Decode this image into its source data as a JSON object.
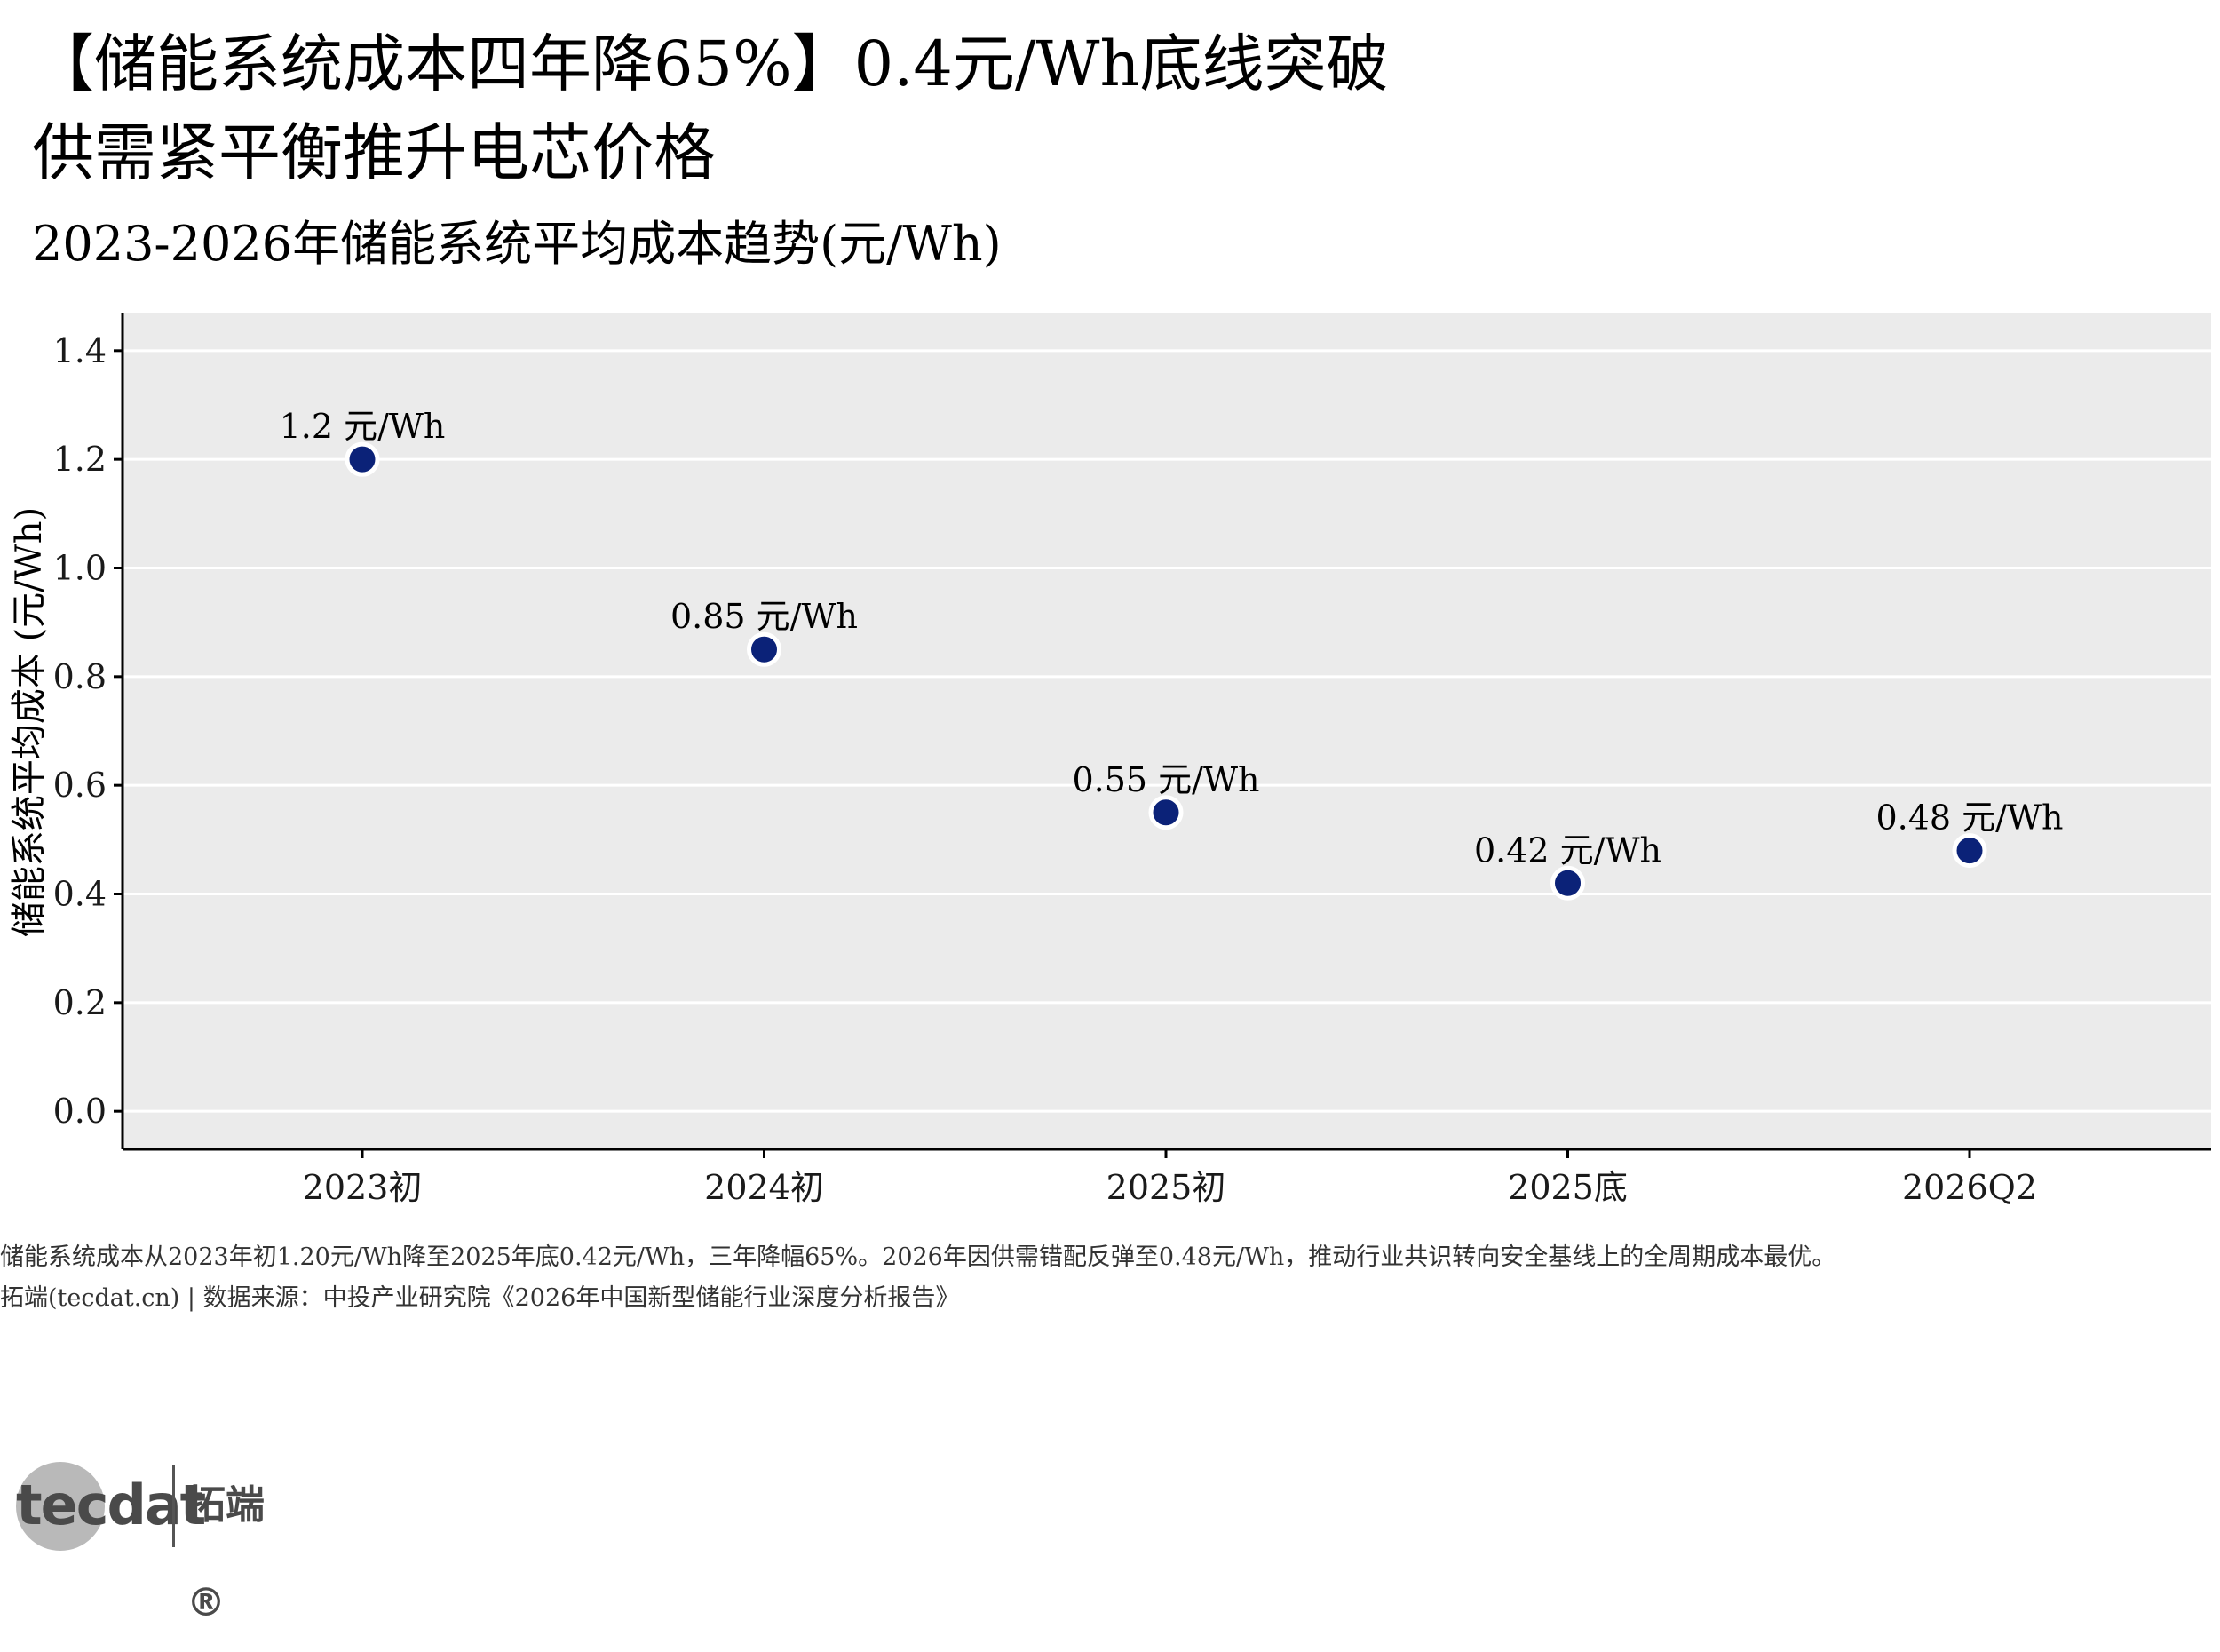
{
  "title": {
    "line1": "【储能系统成本四年降65%】0.4元/Wh底线突破",
    "line2": "供需紧平衡推升电芯价格"
  },
  "subtitle": "2023-2026年储能系统平均成本趋势(元/Wh)",
  "caption": {
    "note": "储能系统成本从2023年初1.20元/Wh降至2025年底0.42元/Wh，三年降幅65%。2026年因供需错配反弹至0.48元/Wh，推动行业共识转向安全基线上的全周期成本最优。",
    "source": "拓端(tecdat.cn) | 数据来源：中投产业研究院《2026年中国新型储能行业深度分析报告》"
  },
  "logo": {
    "en": "tecdat",
    "cn": "拓端®"
  },
  "colors": {
    "panel_bg": "#ebebeb",
    "grid": "#ffffff",
    "point": "#0b2278",
    "point_stroke": "#ffffff",
    "axis": "#000000"
  },
  "chart_data": {
    "type": "scatter",
    "categories": [
      "2023初",
      "2024初",
      "2025初",
      "2025底",
      "2026Q2"
    ],
    "values": [
      1.2,
      0.85,
      0.55,
      0.42,
      0.48
    ],
    "labels": [
      "1.2 元/Wh",
      "0.85 元/Wh",
      "0.55 元/Wh",
      "0.42 元/Wh",
      "0.48 元/Wh"
    ],
    "ylabel": "储能系统平均成本 (元/Wh)",
    "xlabel": "",
    "ylim": [
      -0.07,
      1.47
    ],
    "yticks": [
      0.0,
      0.2,
      0.4,
      0.6,
      0.8,
      1.0,
      1.2,
      1.4
    ],
    "ytick_labels": [
      "0.0",
      "0.2",
      "0.4",
      "0.6",
      "0.8",
      "1.0",
      "1.2",
      "1.4"
    ],
    "grid": true,
    "legend": "none"
  }
}
